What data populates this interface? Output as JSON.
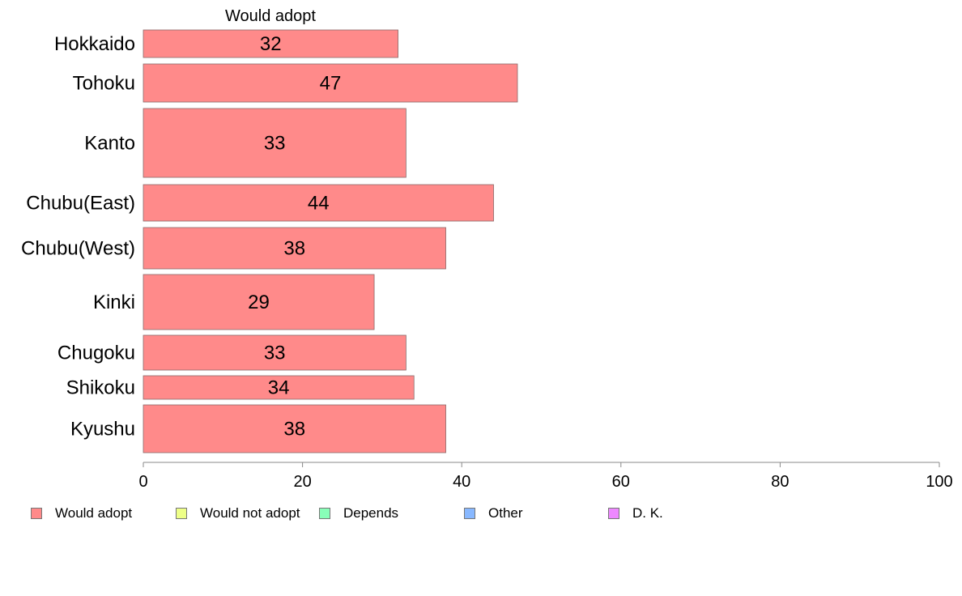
{
  "chart_data": {
    "type": "bar",
    "orientation": "horizontal",
    "series_header": "Would adopt",
    "categories": [
      "Hokkaido",
      "Tohoku",
      "Kanto",
      "Chubu(East)",
      "Chubu(West)",
      "Kinki",
      "Chugoku",
      "Shikoku",
      "Kyushu"
    ],
    "series": [
      {
        "name": "Would adopt",
        "values": [
          32,
          47,
          33,
          44,
          38,
          29,
          33,
          34,
          38
        ],
        "color": "#ff8a8a"
      }
    ],
    "data_labels": [
      "32",
      "47",
      "33",
      "44",
      "38",
      "29",
      "33",
      "34",
      "38"
    ],
    "xlim": [
      0,
      100
    ],
    "x_ticks": [
      0,
      20,
      40,
      60,
      80,
      100
    ],
    "x_tick_labels": [
      "0",
      "20",
      "40",
      "60",
      "80",
      "100"
    ],
    "grid": false,
    "legend_position": "bottom",
    "legend": [
      {
        "label": "Would adopt",
        "color": "#ff8a8a"
      },
      {
        "label": "Would not adopt",
        "color": "#eeff88"
      },
      {
        "label": "Depends",
        "color": "#88ffb8"
      },
      {
        "label": "Other",
        "color": "#88b8ff"
      },
      {
        "label": "D. K.",
        "color": "#ee88ff"
      }
    ]
  }
}
